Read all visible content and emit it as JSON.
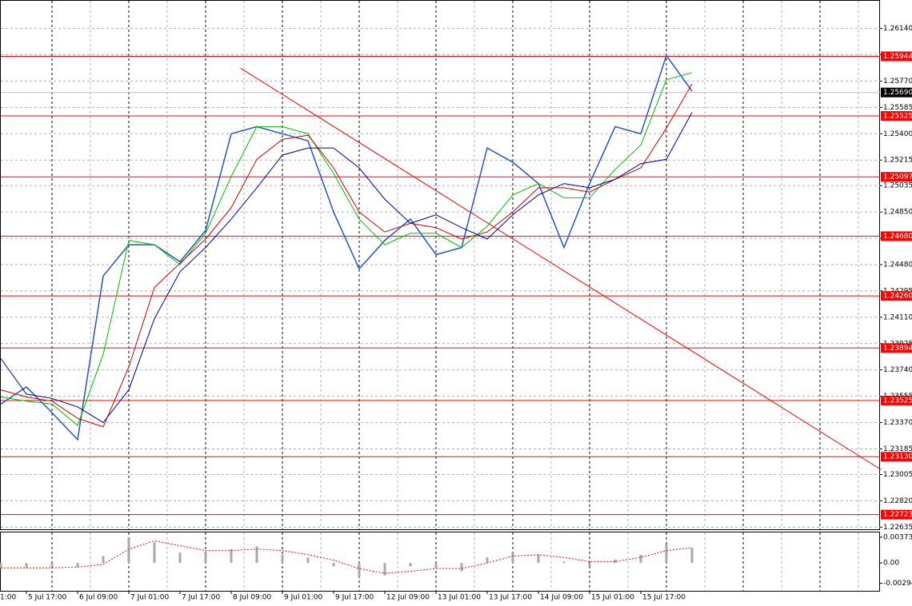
{
  "chart_data": [
    {
      "type": "line",
      "x": [
        0,
        8,
        16,
        24,
        32,
        40,
        48,
        56,
        64,
        72,
        80,
        88,
        96,
        104,
        112,
        120,
        128,
        136,
        144,
        152,
        160,
        168,
        176,
        184,
        192,
        200,
        208,
        216
      ],
      "series": [
        {
          "color": "#2455c3",
          "values": [
            1.235,
            1.2362,
            1.2344,
            1.2325,
            1.244,
            1.2462,
            1.2462,
            1.245,
            1.2472,
            1.254,
            1.2545,
            1.254,
            1.2535,
            1.2485,
            1.2445,
            1.2465,
            1.248,
            1.2455,
            1.246,
            1.253,
            1.252,
            1.2505,
            1.246,
            1.2505,
            1.2545,
            1.254,
            1.2595,
            1.257
          ]
        },
        {
          "color": "#00c000",
          "values": [
            1.2355,
            1.2352,
            1.235,
            1.2335,
            1.2385,
            1.2465,
            1.2462,
            1.2448,
            1.247,
            1.251,
            1.2545,
            1.2545,
            1.254,
            1.2512,
            1.248,
            1.2462,
            1.247,
            1.247,
            1.246,
            1.2475,
            1.2497,
            1.2505,
            1.2495,
            1.2495,
            1.2515,
            1.2532,
            1.2578,
            1.2583
          ]
        },
        {
          "color": "#d00000",
          "values": [
            1.236,
            1.2355,
            1.2352,
            1.234,
            1.2334,
            1.2376,
            1.2432,
            1.2449,
            1.2466,
            1.2488,
            1.2522,
            1.2536,
            1.2539,
            1.2516,
            1.2485,
            1.2471,
            1.2477,
            1.2474,
            1.2466,
            1.2471,
            1.2485,
            1.2502,
            1.2502,
            1.2499,
            1.2508,
            1.2516,
            1.2544,
            1.2575
          ]
        },
        {
          "color": "#0000a0",
          "values": [
            1.2382,
            1.2357,
            1.2354,
            1.2348,
            1.2337,
            1.236,
            1.241,
            1.2443,
            1.246,
            1.248,
            1.2502,
            1.2525,
            1.253,
            1.253,
            1.2516,
            1.2494,
            1.2477,
            1.2483,
            1.2474,
            1.2466,
            1.2483,
            1.2497,
            1.2505,
            1.2502,
            1.2508,
            1.2519,
            1.2522,
            1.2555
          ]
        }
      ],
      "xlim": [
        -0.25,
        274.75
      ],
      "xticks": [
        {
          "value": -8,
          "label": "1:00"
        },
        {
          "value": 8,
          "label": "5 Jul 17:00"
        },
        {
          "value": 24,
          "label": "6 Jul 09:00"
        },
        {
          "value": 40,
          "label": "7 Jul 01:00"
        },
        {
          "value": 56,
          "label": "7 Jul 17:00"
        },
        {
          "value": 72,
          "label": "8 Jul 09:00"
        },
        {
          "value": 88,
          "label": "9 Jul 01:00"
        },
        {
          "value": 104,
          "label": "9 Jul 17:00"
        },
        {
          "value": 120,
          "label": "12 Jul 09:00"
        },
        {
          "value": 136,
          "label": "13 Jul 01:00"
        },
        {
          "value": 152,
          "label": "13 Jul 17:00"
        },
        {
          "value": 168,
          "label": "14 Jul 09:00"
        },
        {
          "value": 184,
          "label": "15 Jul 01:00"
        },
        {
          "value": 200,
          "label": "15 Jul 17:00"
        }
      ],
      "ylim": [
        1.2262,
        1.2634
      ],
      "yticks": [
        {
          "value": 1.2614,
          "label": "1.26140"
        },
        {
          "value": 1.25955,
          "label": "1.25955"
        },
        {
          "value": 1.2577,
          "label": "1.25770"
        },
        {
          "value": 1.25585,
          "label": "1.25585"
        },
        {
          "value": 1.254,
          "label": "1.25400"
        },
        {
          "value": 1.25215,
          "label": "1.25215"
        },
        {
          "value": 1.25035,
          "label": "1.25035"
        },
        {
          "value": 1.2485,
          "label": "1.24850"
        },
        {
          "value": 1.24665,
          "label": "1.24665"
        },
        {
          "value": 1.2448,
          "label": "1.24480"
        },
        {
          "value": 1.24295,
          "label": "1.24295"
        },
        {
          "value": 1.2411,
          "label": "1.24110"
        },
        {
          "value": 1.23925,
          "label": "1.23925"
        },
        {
          "value": 1.2374,
          "label": "1.23740"
        },
        {
          "value": 1.23555,
          "label": "1.23555"
        },
        {
          "value": 1.2337,
          "label": "1.23370"
        },
        {
          "value": 1.23185,
          "label": "1.23185"
        },
        {
          "value": 1.23005,
          "label": "1.23005"
        },
        {
          "value": 1.2282,
          "label": "1.22820"
        },
        {
          "value": 1.22635,
          "label": "1.22635"
        }
      ],
      "grid": true,
      "levels": [
        {
          "value": 1.25944,
          "label": "1.25944"
        },
        {
          "value": 1.25525,
          "label": "1.25525"
        },
        {
          "value": 1.25097,
          "label": "1.25097"
        },
        {
          "value": 1.2468,
          "label": "1.24680"
        },
        {
          "value": 1.2426,
          "label": "1.24260"
        },
        {
          "value": 1.23894,
          "label": "1.23894"
        },
        {
          "value": 1.23525,
          "label": "1.23525"
        },
        {
          "value": 1.2313,
          "label": "1.23130"
        },
        {
          "value": 1.22723,
          "label": "1.22723"
        }
      ],
      "level_color": "#ff0000",
      "current_price": {
        "value": 1.2569,
        "label": "1.25690"
      },
      "trendline": {
        "x": [
          75,
          275
        ],
        "y": [
          1.2586,
          1.2304
        ],
        "color": "#ff0000"
      }
    },
    {
      "type": "oscillator",
      "x": [
        0,
        8,
        16,
        24,
        32,
        40,
        48,
        56,
        64,
        72,
        80,
        88,
        96,
        104,
        112,
        120,
        128,
        136,
        144,
        152,
        160,
        168,
        176,
        184,
        192,
        200,
        208,
        216
      ],
      "series": [
        {
          "type": "bar",
          "color": "#a8a8a8",
          "values": [
            -0.0008,
            -0.0007,
            -0.0006,
            -0.0006,
            0.001,
            0.0037,
            0.003,
            0.0015,
            0.0015,
            0.002,
            0.0024,
            0.0012,
            0.0008,
            -0.0005,
            -0.002,
            -0.0018,
            -0.0005,
            -0.0008,
            -0.0012,
            0.0008,
            0.0015,
            0.0012,
            0.0002,
            -0.0005,
            0.0005,
            0.0012,
            0.0027,
            0.0022
          ]
        },
        {
          "type": "line",
          "color": "#ff0000",
          "values": [
            -0.0007,
            -0.0007,
            -0.0007,
            -0.0006,
            -0.0002,
            0.002,
            0.0032,
            0.0025,
            0.0018,
            0.0018,
            0.002,
            0.0018,
            0.0012,
            0.0004,
            -0.0008,
            -0.0015,
            -0.0012,
            -0.0008,
            -0.0008,
            0.0,
            0.001,
            0.0012,
            0.0008,
            0.0002,
            0.0002,
            0.0008,
            0.0018,
            0.0022
          ]
        }
      ],
      "xlim": [
        -0.25,
        274.75
      ],
      "ylim": [
        -0.0038,
        0.0043
      ],
      "yticks": [
        0.003733,
        {
          "value": 0,
          "label": "0.00"
        },
        -0.002942
      ]
    }
  ]
}
